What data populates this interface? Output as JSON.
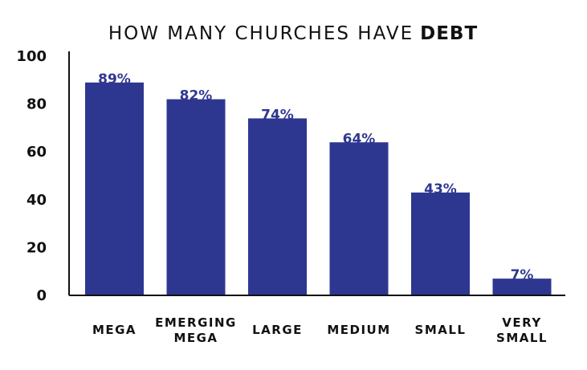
{
  "chart_data": {
    "type": "bar",
    "title": {
      "prefix": "HOW MANY CHURCHES HAVE",
      "emphasis": "DEBT"
    },
    "categories": [
      [
        "MEGA"
      ],
      [
        "EMERGING",
        "MEGA"
      ],
      [
        "LARGE"
      ],
      [
        "MEDIUM"
      ],
      [
        "SMALL"
      ],
      [
        "VERY",
        "SMALL"
      ]
    ],
    "values": [
      89,
      82,
      74,
      64,
      43,
      7
    ],
    "data_labels": [
      "89%",
      "82%",
      "74%",
      "64%",
      "43%",
      "7%"
    ],
    "yticks": [
      "0",
      "20",
      "40",
      "60",
      "80",
      "100"
    ],
    "ylim": [
      0,
      100
    ],
    "xlabel": "",
    "ylabel": "",
    "grid": false,
    "legend": "none",
    "colors": {
      "bar": "#2E3790",
      "data_label": "#2E3790",
      "axis": "#111111",
      "text": "#111111"
    }
  }
}
